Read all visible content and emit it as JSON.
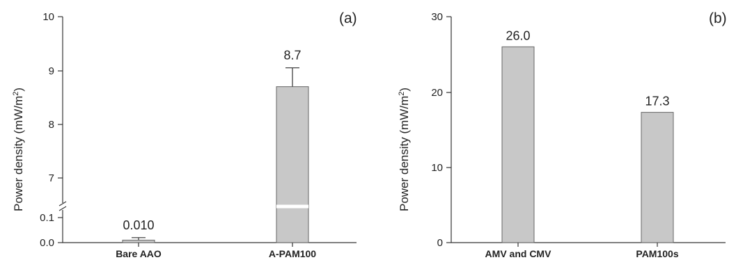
{
  "chart_data": [
    {
      "type": "bar",
      "panel_label": "(a)",
      "ylabel": "Power density (mW/m",
      "ylabel_sup": "2",
      "ylabel_close": ")",
      "categories": [
        "Bare AAO",
        "A-PAM100"
      ],
      "values": [
        0.01,
        8.7
      ],
      "errors": [
        0.01,
        0.35
      ],
      "value_labels": [
        "0.010",
        "8.7"
      ],
      "axis_break": true,
      "ylim_lower": [
        0,
        0.15
      ],
      "ylim_upper": [
        6.5,
        10
      ],
      "y_ticks": [
        "0.0",
        "0.1",
        "7",
        "8",
        "9",
        "10"
      ],
      "bar_color": "#c8c8c8"
    },
    {
      "type": "bar",
      "panel_label": "(b)",
      "ylabel": "Power density (mW/m",
      "ylabel_sup": "2",
      "ylabel_close": ")",
      "categories": [
        "AMV and CMV",
        "PAM100s"
      ],
      "values": [
        26.0,
        17.3
      ],
      "value_labels": [
        "26.0",
        "17.3"
      ],
      "ylim": [
        0,
        30
      ],
      "y_ticks": [
        "0",
        "10",
        "20",
        "30"
      ],
      "bar_color": "#c8c8c8"
    }
  ]
}
